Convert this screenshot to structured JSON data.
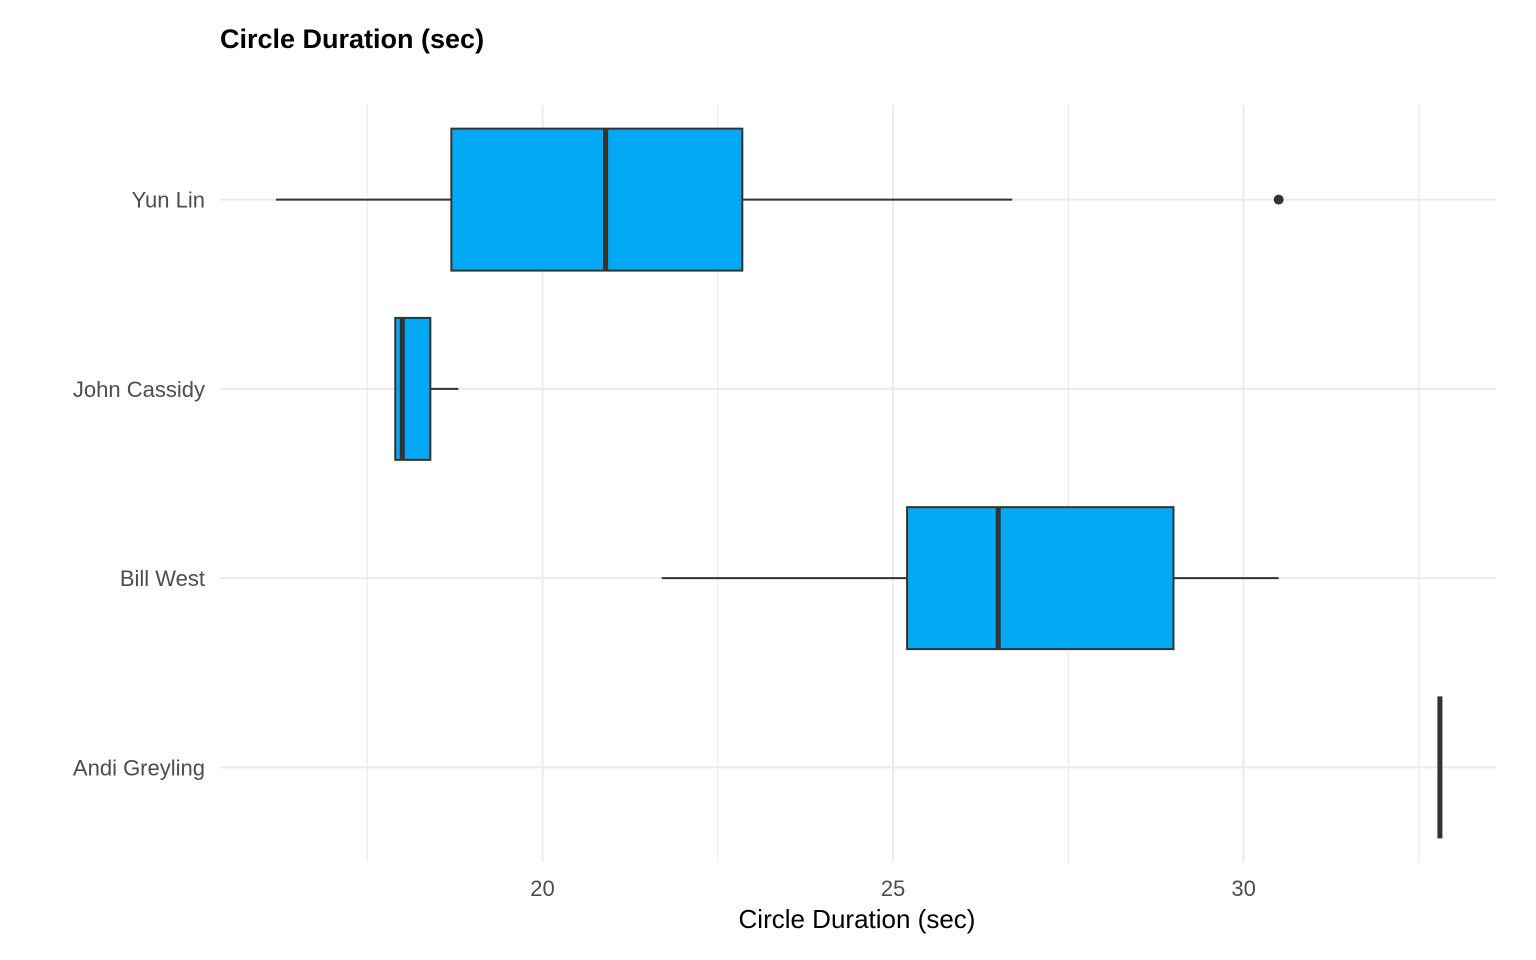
{
  "chart_data": {
    "type": "boxplot",
    "orientation": "horizontal",
    "title": "Circle Duration (sec)",
    "xlabel": "Circle Duration (sec)",
    "ylabel": "",
    "xlim": [
      15.4,
      33.6
    ],
    "x_ticks": [
      20,
      25,
      30
    ],
    "x_tick_labels": [
      "20",
      "25",
      "30"
    ],
    "grid": true,
    "legend": "none",
    "categories": [
      "Yun Lin",
      "John Cassidy",
      "Bill West",
      "Andi Greyling"
    ],
    "series": [
      {
        "category": "Yun Lin",
        "min": 16.2,
        "q1": 18.7,
        "median": 20.9,
        "q3": 22.85,
        "max": 26.7,
        "outliers": [
          30.5
        ]
      },
      {
        "category": "John Cassidy",
        "min": 17.9,
        "q1": 17.9,
        "median": 18.0,
        "q3": 18.4,
        "max": 18.8,
        "outliers": []
      },
      {
        "category": "Bill West",
        "min": 21.7,
        "q1": 25.2,
        "median": 26.5,
        "q3": 29.0,
        "max": 30.5,
        "outliers": []
      },
      {
        "category": "Andi Greyling",
        "min": 32.8,
        "q1": 32.8,
        "median": 32.8,
        "q3": 32.8,
        "max": 32.8,
        "outliers": []
      }
    ],
    "colors": {
      "box_fill": "#03a9f4",
      "box_stroke": "#333333",
      "grid": "#ebebeb"
    }
  }
}
